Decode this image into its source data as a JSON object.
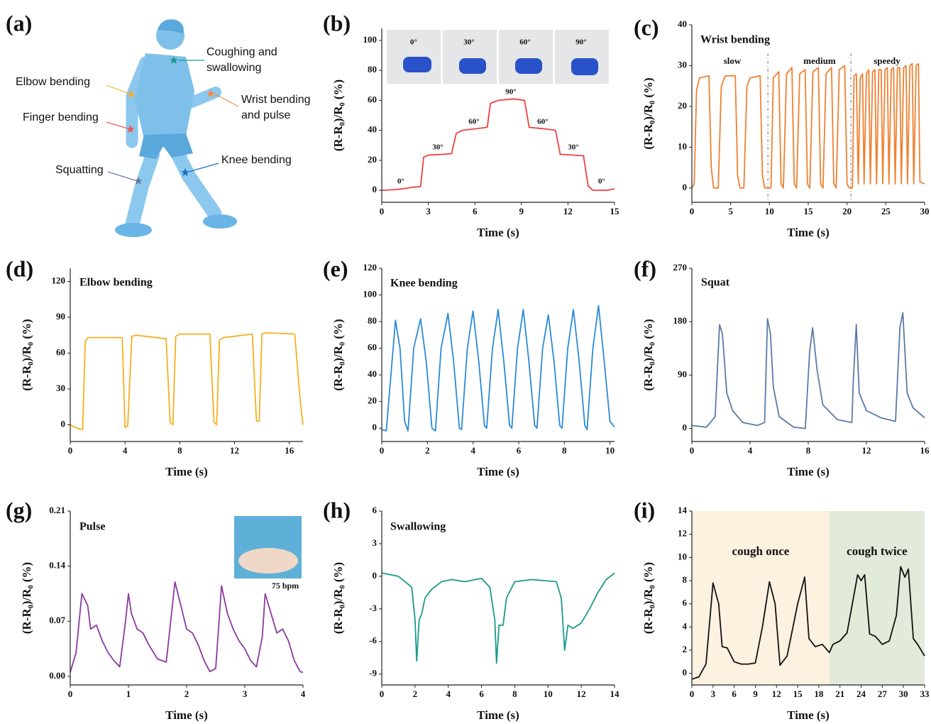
{
  "illustration": {
    "panel_label": "(a)",
    "labels": [
      {
        "lines": [
          "Coughing and",
          "swallowing"
        ],
        "color": "#1a9a8a"
      },
      {
        "lines": [
          "Elbow bending"
        ],
        "color": "#f0b030"
      },
      {
        "lines": [
          "Wrist bending",
          "and pulse"
        ],
        "color": "#f08a4a"
      },
      {
        "lines": [
          "Finger bending"
        ],
        "color": "#f05a5a"
      },
      {
        "lines": [
          "Squatting"
        ],
        "color": "#6a7aa0"
      },
      {
        "lines": [
          "Knee bending"
        ],
        "color": "#1a6fc4"
      }
    ]
  },
  "chart_data": [
    {
      "type": "line",
      "panel_label": "(b)",
      "x_label": "Time (s)",
      "y_label": "(R-R₀)/R₀ (%)",
      "color": "#f04040",
      "xlim": [
        0,
        15
      ],
      "xticks": [
        0,
        3,
        6,
        9,
        12,
        15
      ],
      "ylim": [
        -8,
        108
      ],
      "yticks": [
        0,
        20,
        40,
        60,
        80,
        100
      ],
      "photo_labels": [
        "0°",
        "30°",
        "60°",
        "90°"
      ],
      "annotations": [
        "0°",
        "30°",
        "60°",
        "90°",
        "60°",
        "30°",
        "0°"
      ],
      "x": [
        0,
        1,
        2,
        2.5,
        2.7,
        3,
        4,
        4.5,
        4.8,
        5.2,
        6,
        6.8,
        7,
        7.5,
        8.5,
        9.2,
        9.5,
        10.5,
        11.2,
        11.5,
        13,
        13.3,
        13.6,
        14.5,
        15
      ],
      "values": [
        0,
        0.5,
        2,
        2.5,
        22,
        23.5,
        24,
        24.5,
        38,
        40,
        41,
        42,
        58,
        60,
        61,
        60,
        42,
        41,
        40,
        24,
        23,
        3,
        0,
        0,
        1
      ]
    },
    {
      "type": "line",
      "panel_label": "(c)",
      "title": "Wrist bending",
      "x_label": "Time (s)",
      "y_label": "(R-R₀)/R₀ (%)",
      "color": "#f08030",
      "xlim": [
        0,
        30
      ],
      "xticks": [
        0,
        5,
        10,
        15,
        20,
        25,
        30
      ],
      "ylim": [
        -3.5,
        40
      ],
      "yticks": [
        0,
        10,
        20,
        30,
        40
      ],
      "vlines": [
        9.8,
        20.5
      ],
      "annotations": [
        "slow",
        "medium",
        "speedy"
      ],
      "x": [
        0,
        0.3,
        0.6,
        1,
        2.2,
        2.5,
        2.8,
        3.4,
        3.8,
        4.3,
        5.6,
        5.9,
        6.2,
        6.7,
        7.1,
        7.5,
        8.8,
        9.1,
        9.4,
        10.2,
        10.5,
        11.2,
        11.5,
        11.8,
        12.2,
        12.9,
        13.2,
        13.5,
        13.9,
        14.6,
        14.9,
        15.2,
        15.6,
        16.3,
        16.6,
        16.9,
        17.3,
        18,
        18.3,
        18.6,
        19,
        19.7,
        20,
        20.3,
        20.7,
        20.9,
        21.2,
        21.45,
        21.7,
        22,
        22.2,
        22.5,
        22.8,
        23,
        23.3,
        23.6,
        23.8,
        24.1,
        24.4,
        24.6,
        24.9,
        25.2,
        25.4,
        25.7,
        26,
        26.2,
        26.5,
        26.8,
        27,
        27.3,
        27.6,
        27.8,
        28.1,
        28.4,
        28.6,
        28.9,
        29.2,
        29.4,
        30
      ],
      "values": [
        0,
        1,
        24,
        27,
        27.5,
        5,
        0,
        0,
        25,
        27.5,
        27.5,
        3,
        0,
        0,
        25,
        27,
        27.5,
        3,
        0,
        0,
        27,
        28.5,
        1,
        0,
        28,
        29.5,
        1,
        0,
        28,
        29,
        1,
        0,
        28.5,
        29.5,
        1,
        0,
        28,
        29.5,
        1,
        0,
        29,
        30,
        1,
        0,
        0,
        27.5,
        28,
        1,
        27,
        28,
        1,
        28,
        29,
        1,
        28.5,
        29,
        1,
        29,
        29,
        1,
        29,
        29.5,
        1,
        29,
        29.5,
        1,
        29.5,
        29.5,
        1,
        29.5,
        30,
        1,
        30,
        30.5,
        1,
        30,
        30.5,
        1.5,
        1
      ]
    },
    {
      "type": "line",
      "panel_label": "(d)",
      "title": "Elbow bending",
      "x_label": "Time (s)",
      "y_label": "(R-R₀)/R₀ (%)",
      "color": "#f5b020",
      "xlim": [
        0,
        17
      ],
      "xticks": [
        0,
        4,
        8,
        12,
        16
      ],
      "ylim": [
        -14,
        131
      ],
      "yticks": [
        0,
        30,
        60,
        90,
        120
      ],
      "x": [
        0,
        0.5,
        0.9,
        1.1,
        1.3,
        3.8,
        4,
        4.2,
        4.5,
        4.8,
        7,
        7.3,
        7.5,
        7.7,
        8,
        10.2,
        10.5,
        10.7,
        10.9,
        11.2,
        13.3,
        13.6,
        13.8,
        14,
        14.3,
        16.4,
        16.8,
        17
      ],
      "values": [
        0,
        -3,
        -4,
        70,
        73,
        73,
        -2,
        -1,
        74,
        75,
        72,
        2,
        0,
        74,
        76,
        76,
        2,
        0,
        71,
        73,
        76,
        3,
        3,
        76,
        77,
        76,
        20,
        0
      ]
    },
    {
      "type": "line",
      "panel_label": "(e)",
      "title": "Knee bending",
      "x_label": "Time (s)",
      "y_label": "(R-R₀)/R₀ (%)",
      "color": "#2a8ad8",
      "xlim": [
        0,
        10.2
      ],
      "xticks": [
        0,
        2,
        4,
        6,
        8,
        10
      ],
      "ylim": [
        -10,
        120
      ],
      "yticks": [
        0,
        20,
        40,
        60,
        80,
        100,
        120
      ],
      "x": [
        0,
        0.2,
        0.4,
        0.6,
        0.8,
        1,
        1.15,
        1.4,
        1.7,
        1.95,
        2.2,
        2.35,
        2.6,
        2.9,
        3.15,
        3.4,
        3.5,
        3.75,
        4,
        4.25,
        4.5,
        4.6,
        4.85,
        5.1,
        5.35,
        5.6,
        5.7,
        5.95,
        6.2,
        6.45,
        6.7,
        6.8,
        7.05,
        7.3,
        7.55,
        7.8,
        7.9,
        8.15,
        8.4,
        8.65,
        8.9,
        9,
        9.25,
        9.5,
        9.75,
        10,
        10.2
      ],
      "values": [
        -1,
        -2,
        40,
        81,
        60,
        5,
        -2,
        60,
        82,
        50,
        0,
        -2,
        60,
        86,
        50,
        0,
        -1,
        60,
        88,
        50,
        2,
        0,
        60,
        89,
        50,
        2,
        0,
        60,
        89,
        50,
        2,
        0,
        60,
        85,
        50,
        2,
        0,
        60,
        89,
        50,
        2,
        -1,
        60,
        92,
        50,
        5,
        1
      ]
    },
    {
      "type": "line",
      "panel_label": "(f)",
      "title": "Squat",
      "x_label": "Time (s)",
      "y_label": "(R-R₀)/R₀ (%)",
      "color": "#5a7aa8",
      "xlim": [
        0,
        16
      ],
      "xticks": [
        0,
        4,
        8,
        12,
        16
      ],
      "ylim": [
        -22,
        270
      ],
      "yticks": [
        0,
        90,
        180,
        270
      ],
      "x": [
        0,
        1,
        1.6,
        1.9,
        2.1,
        2.4,
        2.8,
        3.5,
        4.5,
        5,
        5.2,
        5.4,
        5.6,
        6,
        7,
        7.8,
        8.1,
        8.3,
        8.6,
        9,
        10,
        11,
        11.1,
        11.3,
        11.5,
        12,
        13,
        14,
        14.3,
        14.5,
        14.8,
        15.2,
        16
      ],
      "values": [
        5,
        2,
        20,
        175,
        160,
        60,
        30,
        10,
        5,
        10,
        185,
        160,
        70,
        20,
        2,
        0,
        130,
        170,
        100,
        40,
        15,
        10,
        80,
        175,
        60,
        30,
        18,
        12,
        170,
        195,
        60,
        35,
        18
      ]
    },
    {
      "type": "line",
      "panel_label": "(g)",
      "title": "Pulse",
      "x_label": "Time (s)",
      "y_label": "(R-R₀)/R₀ (%)",
      "color": "#8a3aa0",
      "xlim": [
        0,
        4
      ],
      "xticks": [
        0,
        1,
        2,
        3,
        4
      ],
      "ylim": [
        -0.011,
        0.21
      ],
      "yticks": [
        {
          "value": 0,
          "label": "0.00"
        },
        0.07,
        0.14,
        0.21
      ],
      "inset_label": {
        "text": "75 bpm",
        "color": "#9b59d0"
      },
      "x": [
        0,
        0.1,
        0.2,
        0.3,
        0.35,
        0.45,
        0.55,
        0.65,
        0.75,
        0.85,
        0.95,
        1,
        1.05,
        1.15,
        1.25,
        1.35,
        1.5,
        1.65,
        1.8,
        1.9,
        2,
        2.1,
        2.2,
        2.3,
        2.4,
        2.5,
        2.6,
        2.7,
        2.8,
        2.9,
        3,
        3.1,
        3.2,
        3.3,
        3.35,
        3.45,
        3.55,
        3.65,
        3.75,
        3.85,
        3.95,
        4
      ],
      "values": [
        0.005,
        0.03,
        0.105,
        0.09,
        0.06,
        0.065,
        0.045,
        0.03,
        0.02,
        0.012,
        0.07,
        0.105,
        0.08,
        0.06,
        0.055,
        0.04,
        0.022,
        0.018,
        0.12,
        0.09,
        0.06,
        0.055,
        0.04,
        0.02,
        0.006,
        0.01,
        0.115,
        0.08,
        0.06,
        0.045,
        0.035,
        0.02,
        0.012,
        0.05,
        0.105,
        0.08,
        0.055,
        0.06,
        0.045,
        0.02,
        0.006,
        0.005
      ]
    },
    {
      "type": "line",
      "panel_label": "(h)",
      "title": "Swallowing",
      "x_label": "Time (s)",
      "y_label": "(R-R₀)/R₀ (%)",
      "color": "#1a9a8a",
      "xlim": [
        0,
        14
      ],
      "xticks": [
        0,
        2,
        4,
        6,
        8,
        10,
        12,
        14
      ],
      "ylim": [
        -10,
        6
      ],
      "yticks": [
        -9,
        -6,
        -3,
        0,
        3,
        6
      ],
      "x": [
        0,
        1,
        1.8,
        2,
        2.1,
        2.25,
        2.4,
        2.6,
        3,
        3.6,
        4.2,
        5,
        6,
        6.5,
        6.8,
        6.9,
        7.05,
        7.3,
        7.5,
        8,
        9,
        10.5,
        10.8,
        11,
        11.2,
        11.5,
        12,
        12.5,
        13,
        13.5,
        14
      ],
      "values": [
        0.3,
        0,
        -1,
        -4,
        -7.8,
        -4,
        -3.5,
        -2,
        -1.2,
        -0.5,
        -0.3,
        -0.5,
        -0.2,
        -1,
        -4,
        -8,
        -4.5,
        -4.5,
        -2,
        -0.5,
        -0.3,
        -0.5,
        -2,
        -6.8,
        -4.5,
        -4.8,
        -4.3,
        -3,
        -1.5,
        -0.3,
        0.3
      ]
    },
    {
      "type": "line",
      "panel_label": "(i)",
      "x_label": "Time (s)",
      "y_label": "(R-R₀)/R₀ (%)",
      "color": "#111111",
      "xlim": [
        0,
        33
      ],
      "xticks": [
        0,
        3,
        6,
        9,
        12,
        15,
        18,
        21,
        24,
        27,
        30,
        33
      ],
      "ylim": [
        -1,
        14
      ],
      "yticks": [
        0,
        2,
        4,
        6,
        8,
        10,
        12,
        14
      ],
      "regions": [
        {
          "label": "cough once",
          "xmin": 0,
          "xmax": 19.5,
          "color": "#fdf1e0",
          "text_color": "#e6a877"
        },
        {
          "label": "cough twice",
          "xmin": 19.5,
          "xmax": 33,
          "color": "#e2ead9",
          "text_color": "#1a8c85"
        }
      ],
      "x": [
        0,
        1,
        2,
        3,
        3.8,
        4.3,
        5,
        6,
        7,
        8,
        9,
        10,
        11,
        11.8,
        12.5,
        13.5,
        15,
        16,
        16.6,
        17.5,
        18.5,
        19.5,
        20,
        21,
        22,
        23.5,
        24,
        24.5,
        25.2,
        26,
        27,
        28,
        29,
        29.6,
        30.2,
        30.7,
        31.4,
        32,
        33
      ],
      "values": [
        -0.5,
        -0.3,
        0.8,
        7.8,
        6,
        2.3,
        2.2,
        1,
        0.8,
        0.8,
        0.9,
        4,
        7.9,
        6,
        0.7,
        1.5,
        6,
        8.3,
        3,
        2.3,
        2.5,
        1.8,
        2.5,
        2.8,
        3.5,
        8.5,
        8,
        8.5,
        3.4,
        3.2,
        2.5,
        2.8,
        5,
        9.2,
        8.3,
        9,
        3,
        2.5,
        1.5
      ]
    }
  ]
}
